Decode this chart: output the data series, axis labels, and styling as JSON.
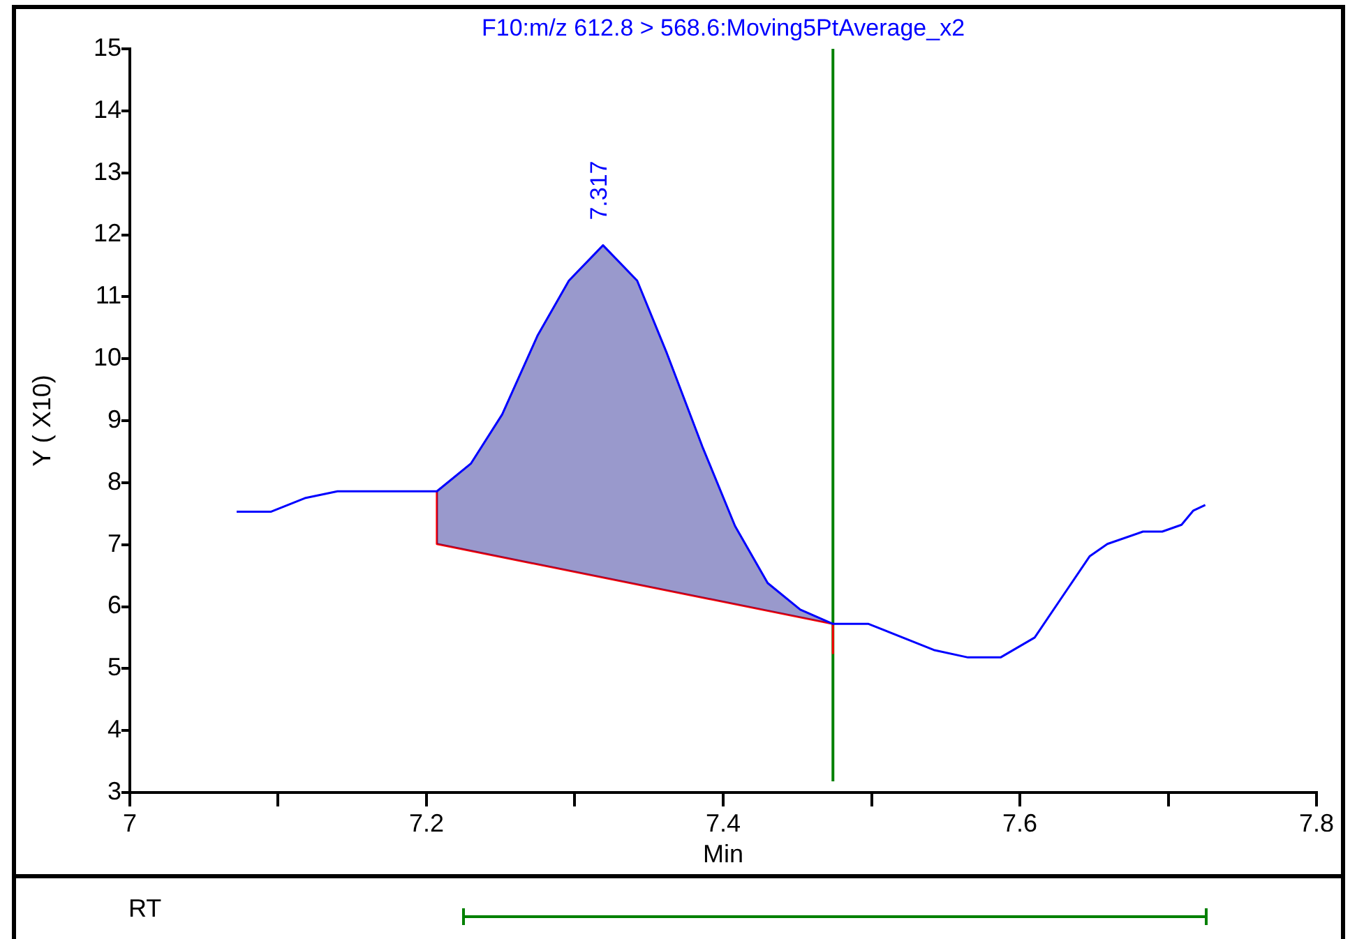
{
  "chart_data": {
    "type": "line",
    "title": "F10:m/z 612.8 > 568.6:Moving5PtAverage_x2",
    "xlabel": "Min",
    "ylabel": "Y ( X10)",
    "xlim": [
      7.0,
      7.8
    ],
    "ylim": [
      3,
      15
    ],
    "xticks": [
      7.0,
      {
        "value": 7.1,
        "label": null
      },
      7.2,
      {
        "value": 7.3,
        "label": null
      },
      7.4,
      {
        "value": 7.5,
        "label": null
      },
      7.6,
      {
        "value": 7.7,
        "label": null
      },
      7.8
    ],
    "yticks": [
      3,
      4,
      5,
      6,
      7,
      8,
      9,
      10,
      11,
      12,
      13,
      14,
      15
    ],
    "grid": false,
    "legend": false,
    "marker": "none",
    "series": [
      {
        "type": "line",
        "color": "#0000ff",
        "x": [
          7.072,
          7.095,
          7.118,
          7.14,
          7.207,
          7.23,
          7.251,
          7.275,
          7.296,
          7.319,
          7.342,
          7.362,
          7.386,
          7.408,
          7.43,
          7.452,
          7.474,
          7.498,
          7.542,
          7.565,
          7.587,
          7.61,
          7.647,
          7.659,
          7.683,
          7.696,
          7.709,
          7.717,
          7.725
        ],
        "values": [
          7.53,
          7.53,
          7.75,
          7.86,
          7.86,
          8.31,
          9.1,
          10.38,
          11.26,
          11.83,
          11.26,
          10.09,
          8.58,
          7.3,
          6.38,
          5.95,
          5.72,
          5.72,
          5.3,
          5.18,
          5.18,
          5.5,
          6.81,
          7.01,
          7.21,
          7.21,
          7.32,
          7.55,
          7.64
        ]
      },
      {
        "type": "area",
        "color": "#000080",
        "x": [
          7.207,
          7.23,
          7.251,
          7.275,
          7.296,
          7.319,
          7.342,
          7.362,
          7.386,
          7.408,
          7.43,
          7.452,
          7.474
        ],
        "values": [
          7.86,
          8.31,
          9.1,
          10.38,
          11.26,
          11.83,
          11.26,
          10.09,
          8.58,
          7.3,
          6.38,
          5.95,
          5.72
        ]
      },
      {
        "type": "line",
        "color": "#ff0000",
        "x": [
          7.207,
          7.207,
          7.474,
          7.474
        ],
        "values": [
          7.86,
          7.01,
          5.72,
          5.25
        ]
      }
    ],
    "ref_lines": [
      {
        "axis": "x",
        "value": 7.474,
        "color": "#008000"
      }
    ],
    "annotations": [
      "RT",
      {
        "text": "7.317",
        "x": 7.317,
        "y": 11.83
      }
    ]
  }
}
